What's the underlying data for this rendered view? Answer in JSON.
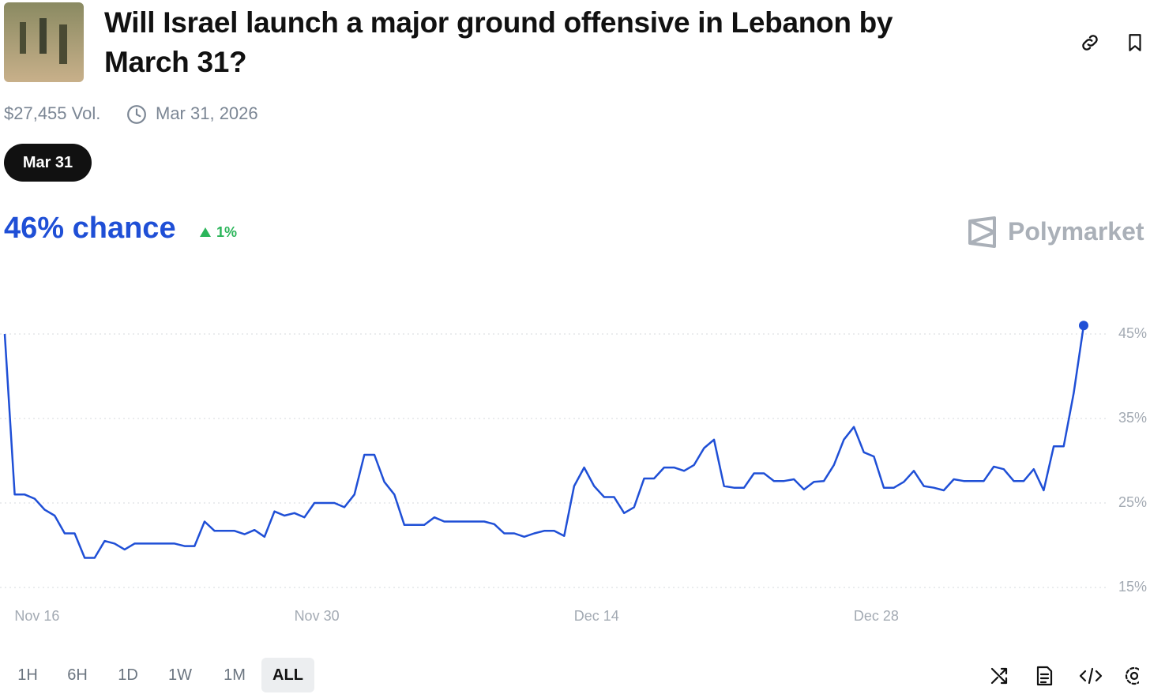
{
  "header": {
    "title": "Will Israel launch a major ground offensive in Lebanon by March 31?",
    "volume": "$27,455 Vol.",
    "end_date": "Mar 31, 2026",
    "outcome_tab": "Mar 31",
    "chance": "46% chance",
    "change": "1%",
    "brand": "Polymarket"
  },
  "time_ranges": [
    "1H",
    "6H",
    "1D",
    "1W",
    "1M",
    "ALL"
  ],
  "chart_data": {
    "type": "line",
    "color": "#1f4fd6",
    "grid": true,
    "categories": [
      null,
      null,
      null,
      "Nov 16",
      null,
      null,
      null,
      null,
      null,
      null,
      null,
      null,
      null,
      null,
      null,
      null,
      null,
      null,
      null,
      null,
      null,
      null,
      null,
      null,
      null,
      null,
      null,
      null,
      null,
      null,
      null,
      "Nov 30",
      null,
      null,
      null,
      null,
      null,
      null,
      null,
      null,
      null,
      null,
      null,
      null,
      null,
      null,
      null,
      null,
      null,
      null,
      null,
      null,
      null,
      null,
      null,
      null,
      null,
      null,
      null,
      "Dec 14",
      null,
      null,
      null,
      null,
      null,
      null,
      null,
      null,
      null,
      null,
      null,
      null,
      null,
      null,
      null,
      null,
      null,
      null,
      null,
      null,
      null,
      null,
      null,
      null,
      null,
      null,
      null,
      "Dec 28",
      null,
      null,
      null,
      null,
      null,
      null,
      null,
      null,
      null,
      null,
      null,
      null,
      null,
      null,
      null,
      null,
      null,
      null,
      null,
      null,
      null
    ],
    "values": [
      45,
      26,
      26,
      25.5,
      24.2,
      23.5,
      21.4,
      21.4,
      18.5,
      18.5,
      20.5,
      20.2,
      19.5,
      20.2,
      20.2,
      20.2,
      20.2,
      20.2,
      19.9,
      19.9,
      22.8,
      21.7,
      21.7,
      21.7,
      21.3,
      21.8,
      21,
      24,
      23.5,
      23.8,
      23.3,
      25,
      25,
      25,
      24.5,
      26,
      30.7,
      30.7,
      27.5,
      26,
      22.4,
      22.4,
      22.4,
      23.3,
      22.8,
      22.8,
      22.8,
      22.8,
      22.8,
      22.5,
      21.4,
      21.4,
      21,
      21.4,
      21.7,
      21.7,
      21.1,
      27,
      29.2,
      27,
      25.7,
      25.7,
      23.8,
      24.5,
      27.9,
      27.9,
      29.2,
      29.2,
      28.8,
      29.5,
      31.5,
      32.5,
      27,
      26.8,
      26.8,
      28.5,
      28.5,
      27.6,
      27.6,
      27.8,
      26.6,
      27.5,
      27.6,
      29.5,
      32.5,
      34,
      31,
      30.5,
      26.8,
      26.8,
      27.5,
      28.8,
      27,
      26.8,
      26.5,
      27.8,
      27.6,
      27.6,
      27.6,
      29.3,
      29,
      27.6,
      27.6,
      29,
      26.5,
      31.7,
      31.7,
      38,
      46
    ],
    "ylim": [
      10,
      50
    ],
    "yticks": [
      {
        "value": 15,
        "label": "15%"
      },
      {
        "value": 25,
        "label": "25%"
      },
      {
        "value": 35,
        "label": "35%"
      },
      {
        "value": 45,
        "label": "45%"
      }
    ]
  }
}
